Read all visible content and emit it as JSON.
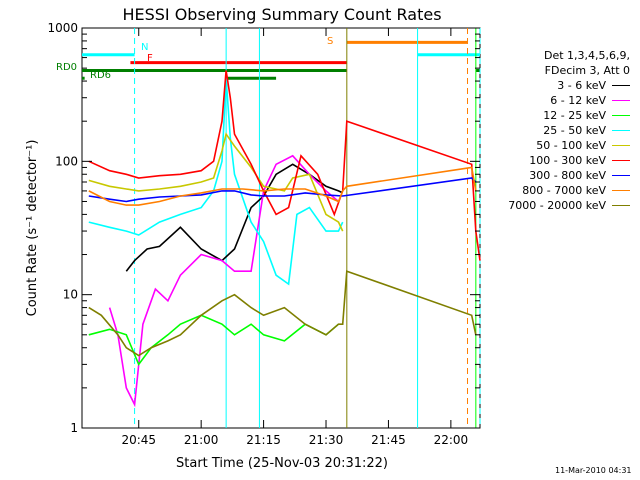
{
  "chart_data": {
    "type": "line",
    "title": "HESSI Observing Summary Count Rates",
    "xlabel": "Start Time (25-Nov-03 20:31:22)",
    "ylabel": "Count Rate (s⁻¹ detector⁻¹)",
    "yscale": "log",
    "ylim": [
      1,
      1000
    ],
    "xlim": [
      "20:31:22",
      "22:07"
    ],
    "x_ticks": [
      "20:45",
      "21:00",
      "21:15",
      "21:30",
      "21:45",
      "22:00"
    ],
    "y_ticks": [
      "1",
      "10",
      "100",
      "1000"
    ],
    "grid": false,
    "legend_position": "right",
    "legend_header": [
      "Det 1,3,4,5,6,9,",
      "FDecim 3, Att 0"
    ],
    "flag_labels": {
      "N": "N",
      "F": "F",
      "S": "S",
      "RD0": "RD0",
      "RD6": "RD6"
    },
    "series": [
      {
        "name": "3 - 6 keV",
        "color": "#000000",
        "points": [
          [
            "20:42",
            15
          ],
          [
            "20:44",
            18
          ],
          [
            "20:47",
            22
          ],
          [
            "20:50",
            23
          ],
          [
            "20:55",
            32
          ],
          [
            "21:00",
            22
          ],
          [
            "21:05",
            18
          ],
          [
            "21:08",
            22
          ],
          [
            "21:12",
            45
          ],
          [
            "21:15",
            55
          ],
          [
            "21:18",
            80
          ],
          [
            "21:22",
            95
          ],
          [
            "21:26",
            80
          ],
          [
            "21:30",
            65
          ],
          [
            "21:33",
            60
          ],
          [
            "21:34",
            58
          ]
        ]
      },
      {
        "name": "6 - 12 keV",
        "color": "#ff00ff",
        "points": [
          [
            "20:38",
            8
          ],
          [
            "20:40",
            5
          ],
          [
            "20:42",
            2
          ],
          [
            "20:44",
            1.5
          ],
          [
            "20:46",
            6
          ],
          [
            "20:49",
            11
          ],
          [
            "20:52",
            9
          ],
          [
            "20:55",
            14
          ],
          [
            "21:00",
            20
          ],
          [
            "21:05",
            18
          ],
          [
            "21:08",
            15
          ],
          [
            "21:12",
            15
          ],
          [
            "21:15",
            60
          ],
          [
            "21:18",
            95
          ],
          [
            "21:22",
            110
          ],
          [
            "21:26",
            80
          ],
          [
            "21:30",
            60
          ],
          [
            "21:33",
            50
          ]
        ]
      },
      {
        "name": "12 - 25 keV",
        "color": "#00ff00",
        "points": [
          [
            "20:33",
            5
          ],
          [
            "20:38",
            5.5
          ],
          [
            "20:42",
            5
          ],
          [
            "20:45",
            3
          ],
          [
            "20:48",
            4
          ],
          [
            "20:52",
            5
          ],
          [
            "20:55",
            6
          ],
          [
            "21:00",
            7
          ],
          [
            "21:05",
            6
          ],
          [
            "21:08",
            5
          ],
          [
            "21:12",
            6
          ],
          [
            "21:15",
            5
          ],
          [
            "21:20",
            4.5
          ],
          [
            "21:25",
            6
          ],
          [
            "21:30",
            5
          ],
          [
            "21:33",
            6
          ]
        ]
      },
      {
        "name": "25 - 50 keV",
        "color": "#00ffff",
        "points": [
          [
            "20:33",
            35
          ],
          [
            "20:38",
            32
          ],
          [
            "20:42",
            30
          ],
          [
            "20:45",
            28
          ],
          [
            "20:50",
            35
          ],
          [
            "20:55",
            40
          ],
          [
            "21:00",
            45
          ],
          [
            "21:03",
            60
          ],
          [
            "21:05",
            100
          ],
          [
            "21:06",
            420
          ],
          [
            "21:07",
            150
          ],
          [
            "21:08",
            80
          ],
          [
            "21:12",
            35
          ],
          [
            "21:15",
            25
          ],
          [
            "21:18",
            14
          ],
          [
            "21:21",
            12
          ],
          [
            "21:23",
            40
          ],
          [
            "21:26",
            45
          ],
          [
            "21:30",
            30
          ],
          [
            "21:33",
            30
          ],
          [
            "21:34",
            35
          ]
        ]
      },
      {
        "name": "50 - 100 keV",
        "color": "#c8c800",
        "points": [
          [
            "20:33",
            72
          ],
          [
            "20:38",
            65
          ],
          [
            "20:42",
            62
          ],
          [
            "20:45",
            60
          ],
          [
            "20:50",
            62
          ],
          [
            "20:55",
            65
          ],
          [
            "21:00",
            70
          ],
          [
            "21:03",
            75
          ],
          [
            "21:05",
            120
          ],
          [
            "21:06",
            160
          ],
          [
            "21:08",
            130
          ],
          [
            "21:12",
            90
          ],
          [
            "21:15",
            65
          ],
          [
            "21:20",
            60
          ],
          [
            "21:22",
            75
          ],
          [
            "21:26",
            80
          ],
          [
            "21:30",
            40
          ],
          [
            "21:33",
            35
          ],
          [
            "21:34",
            30
          ]
        ]
      },
      {
        "name": "100 - 300 keV",
        "color": "#ff0000",
        "points": [
          [
            "20:33",
            100
          ],
          [
            "20:38",
            85
          ],
          [
            "20:42",
            80
          ],
          [
            "20:45",
            75
          ],
          [
            "20:50",
            78
          ],
          [
            "20:55",
            80
          ],
          [
            "21:00",
            85
          ],
          [
            "21:03",
            100
          ],
          [
            "21:05",
            200
          ],
          [
            "21:06",
            480
          ],
          [
            "21:07",
            300
          ],
          [
            "21:08",
            160
          ],
          [
            "21:12",
            95
          ],
          [
            "21:15",
            60
          ],
          [
            "21:18",
            40
          ],
          [
            "21:21",
            45
          ],
          [
            "21:24",
            110
          ],
          [
            "21:28",
            80
          ],
          [
            "21:32",
            40
          ],
          [
            "21:34",
            60
          ],
          [
            "21:35",
            200
          ],
          [
            "22:05",
            95
          ],
          [
            "22:06",
            30
          ],
          [
            "22:07",
            18
          ]
        ]
      },
      {
        "name": "300 - 800 keV",
        "color": "#0000ff",
        "points": [
          [
            "20:33",
            55
          ],
          [
            "20:38",
            52
          ],
          [
            "20:42",
            50
          ],
          [
            "20:45",
            52
          ],
          [
            "20:50",
            54
          ],
          [
            "20:55",
            55
          ],
          [
            "21:00",
            56
          ],
          [
            "21:05",
            60
          ],
          [
            "21:08",
            60
          ],
          [
            "21:12",
            56
          ],
          [
            "21:15",
            55
          ],
          [
            "21:20",
            55
          ],
          [
            "21:25",
            58
          ],
          [
            "21:30",
            56
          ],
          [
            "21:34",
            55
          ],
          [
            "22:05",
            75
          ],
          [
            "22:06",
            70
          ]
        ]
      },
      {
        "name": "800 - 7000 keV",
        "color": "#ff7f00",
        "points": [
          [
            "20:33",
            60
          ],
          [
            "20:38",
            50
          ],
          [
            "20:42",
            47
          ],
          [
            "20:45",
            47
          ],
          [
            "20:50",
            50
          ],
          [
            "20:55",
            55
          ],
          [
            "21:00",
            58
          ],
          [
            "21:05",
            62
          ],
          [
            "21:10",
            62
          ],
          [
            "21:15",
            60
          ],
          [
            "21:20",
            62
          ],
          [
            "21:25",
            62
          ],
          [
            "21:30",
            55
          ],
          [
            "21:33",
            50
          ],
          [
            "21:34",
            60
          ],
          [
            "21:35",
            65
          ],
          [
            "22:05",
            90
          ],
          [
            "22:06",
            60
          ]
        ]
      },
      {
        "name": "7000 - 20000 keV",
        "color": "#7f7f00",
        "points": [
          [
            "20:33",
            8
          ],
          [
            "20:36",
            7
          ],
          [
            "20:40",
            5
          ],
          [
            "20:42",
            4
          ],
          [
            "20:45",
            3.5
          ],
          [
            "20:48",
            4
          ],
          [
            "20:52",
            4.5
          ],
          [
            "20:55",
            5
          ],
          [
            "21:00",
            7
          ],
          [
            "21:05",
            9
          ],
          [
            "21:08",
            10
          ],
          [
            "21:12",
            8
          ],
          [
            "21:15",
            7
          ],
          [
            "21:20",
            8
          ],
          [
            "21:25",
            6
          ],
          [
            "21:30",
            5
          ],
          [
            "21:33",
            6
          ],
          [
            "21:34",
            6
          ],
          [
            "21:35",
            15
          ],
          [
            "22:05",
            7
          ],
          [
            "22:06",
            5
          ]
        ]
      }
    ],
    "vertical_markers": [
      {
        "x": "20:44",
        "color": "#00ffff",
        "dashed": true
      },
      {
        "x": "21:06",
        "color": "#00ffff",
        "dashed": false
      },
      {
        "x": "21:14",
        "color": "#00ffff",
        "dashed": false
      },
      {
        "x": "21:35",
        "color": "#7f7f00",
        "dashed": false
      },
      {
        "x": "21:52",
        "color": "#00ffff",
        "dashed": false
      },
      {
        "x": "22:04",
        "color": "#ff7f00",
        "dashed": true
      },
      {
        "x": "22:06",
        "color": "#00ff00",
        "dashed": false
      },
      {
        "x": "22:07",
        "color": "#00ffff",
        "dashed": true
      }
    ],
    "flag_bars": [
      {
        "label_key": "N",
        "color": "#00ffff",
        "y": 630,
        "segments": [
          [
            "20:31:22",
            "20:44"
          ],
          [
            "21:52",
            "22:07"
          ]
        ]
      },
      {
        "label_key": "F",
        "color": "#ff0000",
        "y": 550,
        "segments": [
          [
            "20:43",
            "21:35"
          ]
        ]
      },
      {
        "label_key": "S",
        "color": "#ff7f00",
        "y": 780,
        "segments": [
          [
            "21:35",
            "22:04"
          ]
        ]
      },
      {
        "label_key": "RD0",
        "color": "#007f00",
        "y": 480,
        "segments": [
          [
            "20:31:22",
            "21:06"
          ],
          [
            "21:06",
            "21:35"
          ],
          [
            "22:06",
            "22:07"
          ]
        ]
      },
      {
        "label_key": "RD6",
        "color": "#007f00",
        "y": 420,
        "segments": [
          [
            "20:31:22",
            "20:32"
          ],
          [
            "21:06",
            "21:18"
          ]
        ]
      }
    ]
  },
  "timestamp": "11-Mar-2010 04:31"
}
